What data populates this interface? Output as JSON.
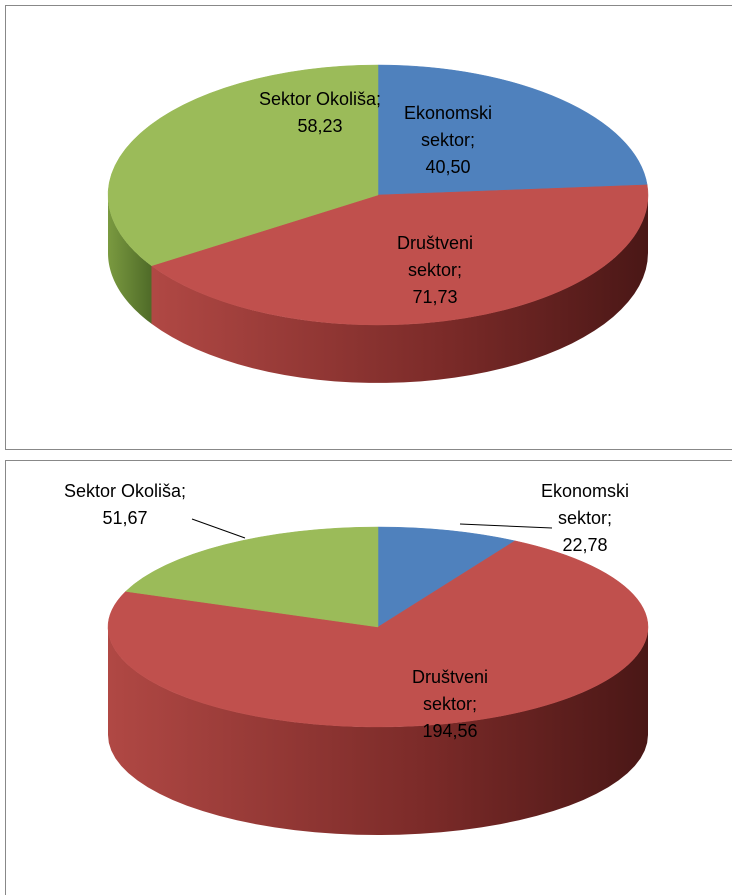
{
  "chart_data": [
    {
      "type": "pie3d",
      "separator": ";",
      "categories": [
        "Ekonomski sektor",
        "Društveni sektor",
        "Sektor Okoliša"
      ],
      "values": [
        40.5,
        71.73,
        58.23
      ],
      "value_labels": [
        "40,50",
        "71,73",
        "58,23"
      ],
      "colors": [
        "#4f81bd",
        "#c0504d",
        "#9bbb59"
      ]
    },
    {
      "type": "pie3d",
      "separator": ";",
      "categories": [
        "Ekonomski sektor",
        "Društveni sektor",
        "Sektor Okoliša"
      ],
      "values": [
        22.78,
        194.56,
        51.67
      ],
      "value_labels": [
        "22,78",
        "194,56",
        "51,67"
      ],
      "colors": [
        "#4f81bd",
        "#c0504d",
        "#9bbb59"
      ]
    }
  ]
}
